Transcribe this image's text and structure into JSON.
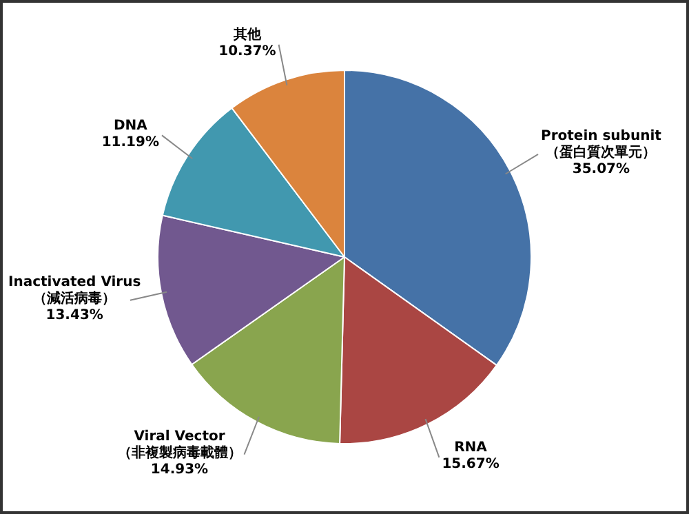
{
  "chart_data": {
    "type": "pie",
    "categories": [
      "Protein subunit\n（蛋白質次單元）",
      "RNA",
      "Viral Vector\n（非複製病毒載體）",
      "Inactivated Virus\n（減活病毒）",
      "DNA",
      "其他"
    ],
    "values": [
      35.07,
      15.67,
      14.93,
      13.43,
      11.19,
      10.37
    ],
    "colors": [
      "#4572a7",
      "#aa4643",
      "#89a54e",
      "#71588f",
      "#4198af",
      "#db843d"
    ],
    "value_labels": [
      "35.07%",
      "15.67%",
      "14.93%",
      "13.43%",
      "11.19%",
      "10.37%"
    ],
    "legend": false
  }
}
